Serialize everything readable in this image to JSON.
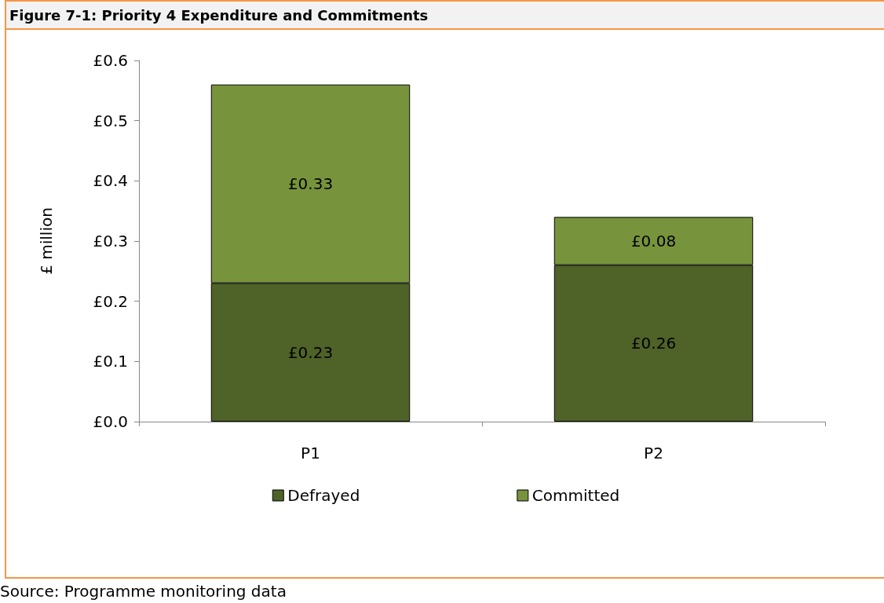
{
  "chart_data": {
    "type": "bar",
    "title": "Figure 7-1: Priority 4 Expenditure and Commitments",
    "ylabel": "£ million",
    "categories": [
      "P1",
      "P2"
    ],
    "stacked": true,
    "series": [
      {
        "name": "Defrayed",
        "color": "#4f6228",
        "values": [
          0.23,
          0.26
        ],
        "value_labels": [
          "£0.23",
          "£0.26"
        ]
      },
      {
        "name": "Committed",
        "color": "#77933c",
        "values": [
          0.33,
          0.08
        ],
        "value_labels": [
          "£0.33",
          "£0.08"
        ]
      }
    ],
    "ylim": [
      0,
      0.6
    ],
    "yticks": [
      {
        "value": 0,
        "label": "£0.0"
      },
      {
        "value": 0.1,
        "label": "£0.1"
      },
      {
        "value": 0.2,
        "label": "£0.2"
      },
      {
        "value": 0.3,
        "label": "£0.3"
      },
      {
        "value": 0.4,
        "label": "£0.4"
      },
      {
        "value": 0.5,
        "label": "£0.5"
      },
      {
        "value": 0.6,
        "label": "£0.6"
      }
    ],
    "grid": false,
    "legend": "bottom",
    "annotations": [
      "Source: Programme monitoring data"
    ]
  }
}
